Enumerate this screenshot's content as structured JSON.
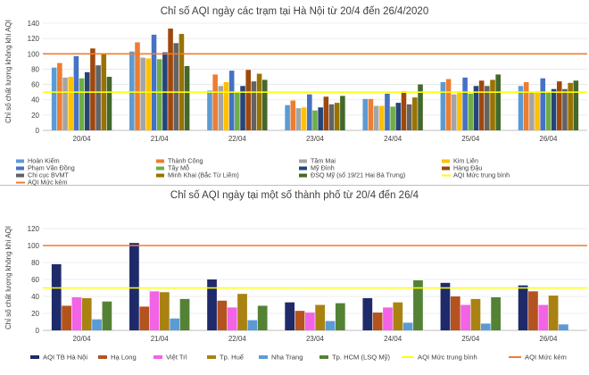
{
  "colors": {
    "hoan_kiem": "#5B9BD5",
    "thanh_cong": "#ED7D31",
    "tam_mai": "#A5A5A5",
    "kim_lien": "#FFC000",
    "pham_van_dong": "#4472C4",
    "tay_mo": "#70AD47",
    "my_dinh": "#264478",
    "hang_dau": "#9E480E",
    "chi_cuc_bvmt": "#636363",
    "minh_khai": "#997300",
    "dsq_my": "#43682B",
    "line_tb": "#FFFF00",
    "line_kem": "#ED7D31",
    "tb_hanoi": "#1F2A6B",
    "ha_long": "#B4531E",
    "viet_tri": "#F263E6",
    "tp_hue": "#A98212",
    "nha_trang": "#5B9BD5",
    "tp_hcm": "#548235"
  },
  "chart_data": [
    {
      "type": "bar",
      "title": "Chỉ số AQI ngày các trạm tại Hà Nội từ 20/4 đến 26/4/2020",
      "ylabel": "Chỉ số chất lượng không khí AQI",
      "xlabel": "",
      "ylim": [
        0,
        140
      ],
      "yticks": [
        0,
        20,
        40,
        60,
        80,
        100,
        120,
        140
      ],
      "categories": [
        "20/04",
        "21/04",
        "22/04",
        "23/04",
        "24/04",
        "25/04",
        "26/04"
      ],
      "series": [
        {
          "name": "Hoàn Kiếm",
          "color_key": "hoan_kiem",
          "values": [
            82,
            103,
            52,
            33,
            41,
            63,
            58
          ]
        },
        {
          "name": "Thành Công",
          "color_key": "thanh_cong",
          "values": [
            88,
            115,
            73,
            39,
            41,
            67,
            63
          ]
        },
        {
          "name": "Tâm Mai",
          "color_key": "tam_mai",
          "values": [
            69,
            95,
            58,
            29,
            32,
            47,
            49
          ]
        },
        {
          "name": "Kim Liên",
          "color_key": "kim_lien",
          "values": [
            70,
            94,
            63,
            30,
            32,
            51,
            51
          ]
        },
        {
          "name": "Phạm Văn Đồng",
          "color_key": "pham_van_dong",
          "values": [
            97,
            125,
            78,
            47,
            48,
            69,
            68
          ]
        },
        {
          "name": "Tây Mỗ",
          "color_key": "tay_mo",
          "values": [
            68,
            93,
            50,
            26,
            31,
            48,
            50
          ]
        },
        {
          "name": "Mỹ Đình",
          "color_key": "my_dinh",
          "values": [
            76,
            102,
            58,
            30,
            36,
            58,
            54
          ]
        },
        {
          "name": "Hàng Đậu",
          "color_key": "hang_dau",
          "values": [
            107,
            133,
            79,
            44,
            51,
            65,
            64
          ]
        },
        {
          "name": "Chi cục BVMT",
          "color_key": "chi_cuc_bvmt",
          "values": [
            85,
            114,
            64,
            34,
            34,
            58,
            54
          ]
        },
        {
          "name": "Minh Khai (Bắc Từ Liêm)",
          "color_key": "minh_khai",
          "values": [
            100,
            126,
            74,
            36,
            43,
            66,
            62
          ]
        },
        {
          "name": "ĐSQ Mỹ (số 19/21 Hai Bà Trưng)",
          "color_key": "dsq_my",
          "values": [
            70,
            84,
            66,
            45,
            60,
            73,
            65
          ]
        }
      ],
      "reference_lines": [
        {
          "name": "AQI Mức trung bình",
          "color_key": "line_tb",
          "value": 50
        },
        {
          "name": "AQI Mức kém",
          "color_key": "line_kem",
          "value": 100
        }
      ],
      "legend_position": "bottom"
    },
    {
      "type": "bar",
      "title": "Chỉ số AQI ngày tại một số thành phố từ 20/4 đến 26/4",
      "ylabel": "Chỉ số chất lượng không khí AQI",
      "xlabel": "",
      "ylim": [
        0,
        120
      ],
      "yticks": [
        0,
        20,
        40,
        60,
        80,
        100,
        120
      ],
      "categories": [
        "20/04",
        "21/04",
        "22/04",
        "23/04",
        "24/04",
        "25/04",
        "26/04"
      ],
      "series": [
        {
          "name": "AQI TB Hà Nội",
          "color_key": "tb_hanoi",
          "values": [
            78,
            103,
            60,
            33,
            38,
            56,
            53
          ]
        },
        {
          "name": "Hạ Long",
          "color_key": "ha_long",
          "values": [
            29,
            28,
            35,
            23,
            21,
            40,
            46
          ]
        },
        {
          "name": "Việt Trì",
          "color_key": "viet_tri",
          "values": [
            39,
            46,
            27,
            21,
            27,
            30,
            30
          ]
        },
        {
          "name": "Tp. Huế",
          "color_key": "tp_hue",
          "values": [
            38,
            45,
            43,
            30,
            33,
            37,
            41
          ]
        },
        {
          "name": "Nha Trang",
          "color_key": "nha_trang",
          "values": [
            13,
            14,
            12,
            11,
            9,
            8,
            7
          ]
        },
        {
          "name": "Tp. HCM (LSQ Mỹ)",
          "color_key": "tp_hcm",
          "values": [
            34,
            37,
            29,
            32,
            59,
            39,
            0
          ]
        }
      ],
      "reference_lines": [
        {
          "name": "AQI Mức trung bình",
          "color_key": "line_tb",
          "value": 50
        },
        {
          "name": "AQI Mức kém",
          "color_key": "line_kem",
          "value": 100
        }
      ],
      "legend_position": "bottom"
    }
  ]
}
